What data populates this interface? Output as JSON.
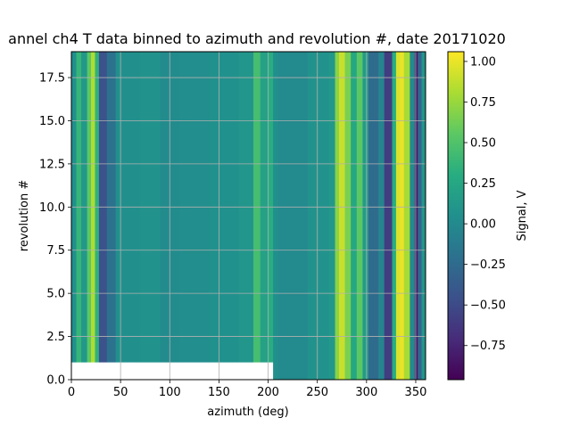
{
  "chart_data": {
    "type": "heatmap",
    "title": "annel ch4 T data binned to azimuth and revolution #, date 20171020",
    "xlabel": "azimuth (deg)",
    "ylabel": "revolution #",
    "xlim": [
      0,
      360
    ],
    "ylim": [
      0,
      19
    ],
    "xticks": [
      "0",
      "50",
      "100",
      "150",
      "200",
      "250",
      "300",
      "350"
    ],
    "yticks": [
      "0.0",
      "2.5",
      "5.0",
      "7.5",
      "10.0",
      "12.5",
      "15.0",
      "17.5"
    ],
    "grid": true,
    "colorbar": {
      "label": "Signal, V",
      "range": [
        -0.96,
        1.06
      ],
      "ticks": [
        "1.00",
        "0.75",
        "0.50",
        "0.25",
        "0.00",
        "−0.25",
        "−0.50",
        "−0.75"
      ],
      "colormap": "viridis"
    },
    "missing_region": {
      "x": [
        0,
        205
      ],
      "y": [
        0,
        1
      ]
    },
    "azimuth_bands": [
      {
        "x0": 0,
        "x1": 5,
        "value": 0.05
      },
      {
        "x0": 5,
        "x1": 10,
        "value": 0.38
      },
      {
        "x0": 10,
        "x1": 16,
        "value": 0.12
      },
      {
        "x0": 16,
        "x1": 20,
        "value": 0.55
      },
      {
        "x0": 20,
        "x1": 24,
        "value": 0.82
      },
      {
        "x0": 24,
        "x1": 28,
        "value": 0.35
      },
      {
        "x0": 28,
        "x1": 36,
        "value": -0.45
      },
      {
        "x0": 36,
        "x1": 45,
        "value": -0.2
      },
      {
        "x0": 45,
        "x1": 70,
        "value": 0.05
      },
      {
        "x0": 70,
        "x1": 90,
        "value": 0.08
      },
      {
        "x0": 90,
        "x1": 110,
        "value": 0.02
      },
      {
        "x0": 110,
        "x1": 140,
        "value": 0.03
      },
      {
        "x0": 140,
        "x1": 170,
        "value": 0.06
      },
      {
        "x0": 170,
        "x1": 185,
        "value": 0.1
      },
      {
        "x0": 185,
        "x1": 192,
        "value": 0.45
      },
      {
        "x0": 192,
        "x1": 200,
        "value": 0.2
      },
      {
        "x0": 200,
        "x1": 205,
        "value": 0.3
      },
      {
        "x0": 205,
        "x1": 210,
        "value": 0.05
      },
      {
        "x0": 210,
        "x1": 240,
        "value": 0.0
      },
      {
        "x0": 240,
        "x1": 262,
        "value": 0.08
      },
      {
        "x0": 262,
        "x1": 268,
        "value": 0.12
      },
      {
        "x0": 268,
        "x1": 272,
        "value": 0.7
      },
      {
        "x0": 272,
        "x1": 278,
        "value": 0.9
      },
      {
        "x0": 278,
        "x1": 284,
        "value": 0.65
      },
      {
        "x0": 284,
        "x1": 290,
        "value": 0.25
      },
      {
        "x0": 290,
        "x1": 296,
        "value": 0.55
      },
      {
        "x0": 296,
        "x1": 302,
        "value": 0.15
      },
      {
        "x0": 302,
        "x1": 312,
        "value": -0.25
      },
      {
        "x0": 312,
        "x1": 318,
        "value": -0.05
      },
      {
        "x0": 318,
        "x1": 326,
        "value": -0.6
      },
      {
        "x0": 326,
        "x1": 330,
        "value": 0.3
      },
      {
        "x0": 330,
        "x1": 334,
        "value": 0.95
      },
      {
        "x0": 334,
        "x1": 338,
        "value": 1.0
      },
      {
        "x0": 338,
        "x1": 344,
        "value": 0.8
      },
      {
        "x0": 344,
        "x1": 349,
        "value": 0.0
      },
      {
        "x0": 349,
        "x1": 352,
        "value": -0.85
      },
      {
        "x0": 352,
        "x1": 356,
        "value": -0.3
      },
      {
        "x0": 356,
        "x1": 360,
        "value": 0.1
      }
    ]
  }
}
